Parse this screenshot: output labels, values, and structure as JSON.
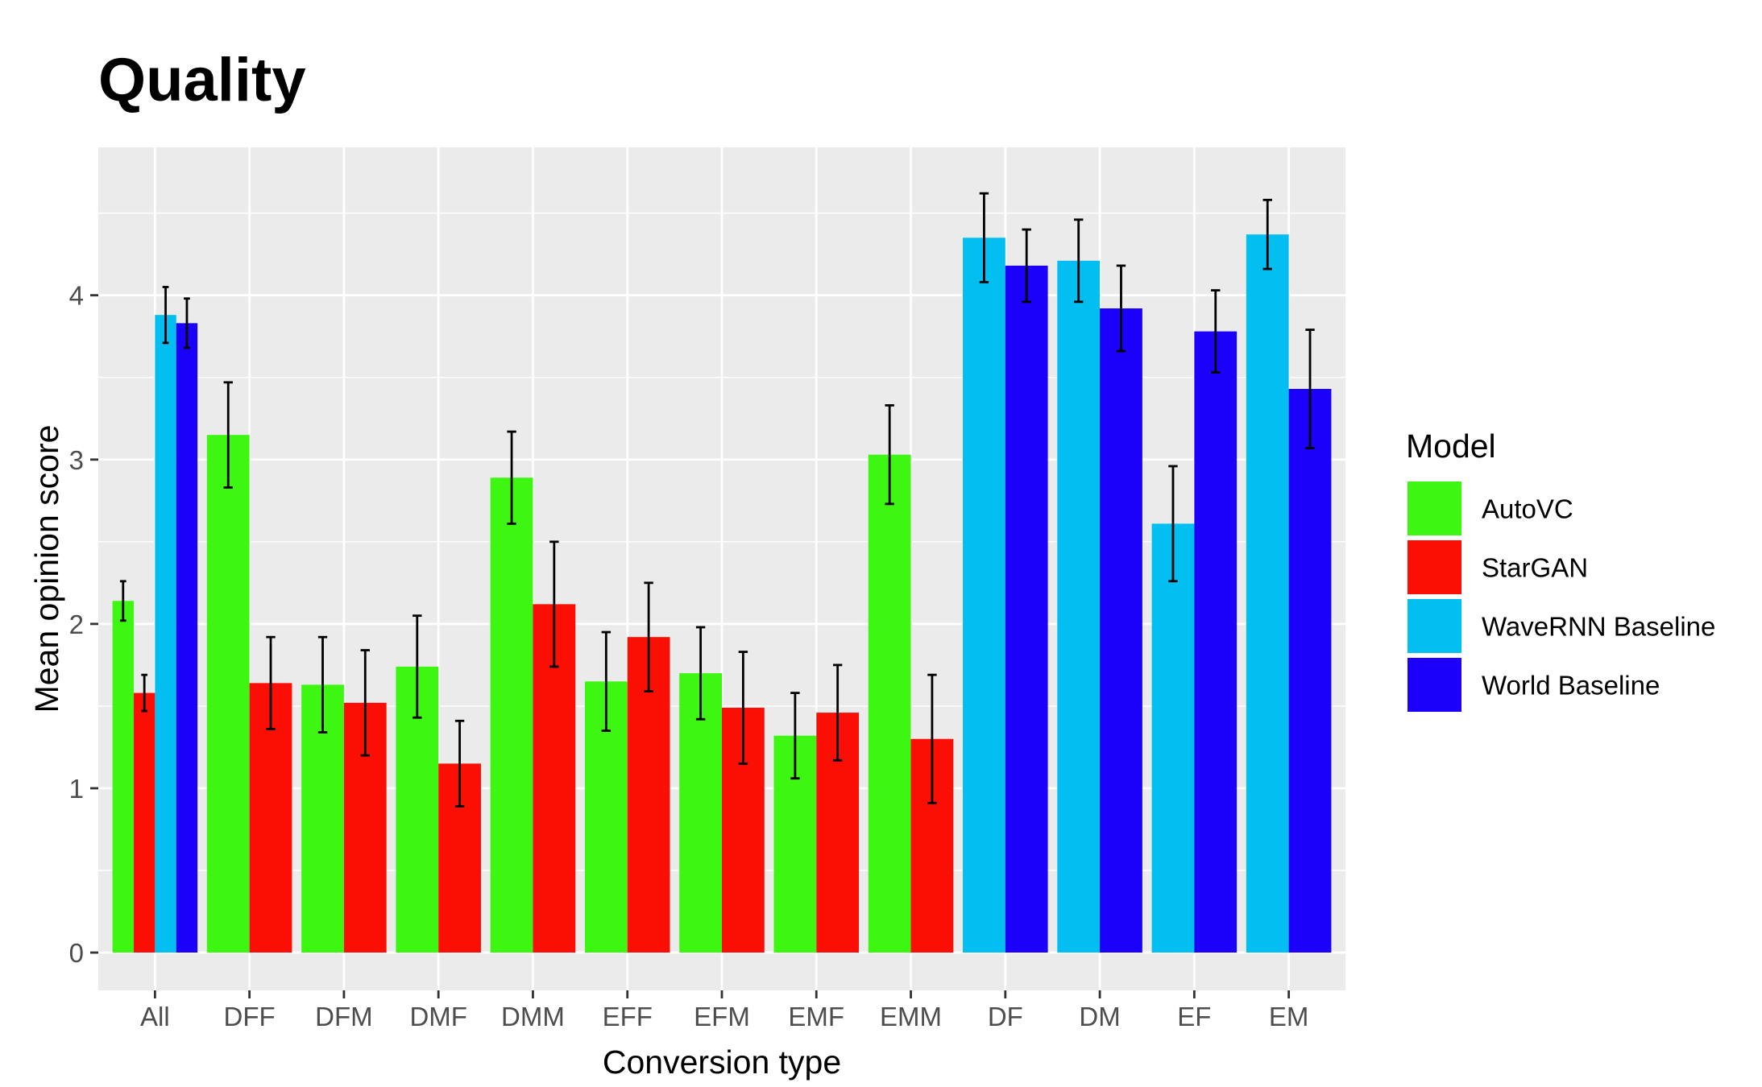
{
  "chart_data": {
    "type": "bar",
    "title": "Quality",
    "xlabel": "Conversion type",
    "ylabel": "Mean opinion score",
    "ylim": [
      -0.23,
      4.9
    ],
    "yticks": [
      0,
      1,
      2,
      3,
      4
    ],
    "ytick_labels": [
      "0",
      "1",
      "2",
      "3",
      "4"
    ],
    "grid": true,
    "legend_title": "Model",
    "legend_placement": "right",
    "categories": [
      "All",
      "DFF",
      "DFM",
      "DMF",
      "DMM",
      "EFF",
      "EFM",
      "EMF",
      "EMM",
      "DF",
      "DM",
      "EF",
      "EM"
    ],
    "series": [
      {
        "name": "AutoVC",
        "color": "#3df712",
        "values": [
          2.14,
          3.15,
          1.63,
          1.74,
          2.89,
          1.65,
          1.7,
          1.32,
          3.03,
          null,
          null,
          null,
          null
        ],
        "err": [
          0.12,
          0.32,
          0.29,
          0.31,
          0.28,
          0.3,
          0.28,
          0.26,
          0.3,
          null,
          null,
          null,
          null
        ]
      },
      {
        "name": "StarGAN",
        "color": "#fb0f05",
        "values": [
          1.58,
          1.64,
          1.52,
          1.15,
          2.12,
          1.92,
          1.49,
          1.46,
          1.3,
          null,
          null,
          null,
          null
        ],
        "err": [
          0.11,
          0.28,
          0.32,
          0.26,
          0.38,
          0.33,
          0.34,
          0.29,
          0.39,
          null,
          null,
          null,
          null
        ]
      },
      {
        "name": "WaveRNN Baseline",
        "color": "#03bef0",
        "values": [
          3.88,
          null,
          null,
          null,
          null,
          null,
          null,
          null,
          null,
          4.35,
          4.21,
          2.61,
          4.37
        ],
        "err": [
          0.17,
          null,
          null,
          null,
          null,
          null,
          null,
          null,
          null,
          0.27,
          0.25,
          0.35,
          0.21
        ]
      },
      {
        "name": "World Baseline",
        "color": "#1b00fa",
        "values": [
          3.83,
          null,
          null,
          null,
          null,
          null,
          null,
          null,
          null,
          4.18,
          3.92,
          3.78,
          3.43
        ],
        "err": [
          0.15,
          null,
          null,
          null,
          null,
          null,
          null,
          null,
          null,
          0.22,
          0.26,
          0.25,
          0.36
        ]
      }
    ]
  }
}
